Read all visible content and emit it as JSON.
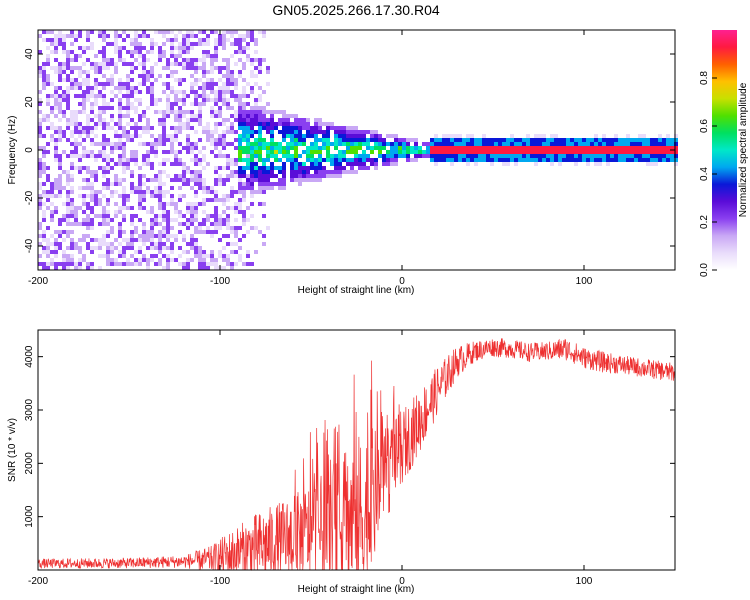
{
  "title": "GN05.2025.266.17.30.R04",
  "chart_data": [
    {
      "type": "heatmap",
      "xlabel": "Height of straight line (km)",
      "ylabel": "Frequency (Hz)",
      "xlim": [
        -200,
        150
      ],
      "ylim": [
        -50,
        50
      ],
      "x_ticks": [
        -200,
        -100,
        0,
        100
      ],
      "y_ticks": [
        -40,
        -20,
        0,
        20,
        40
      ],
      "colorbar": {
        "label": "Normalized spectral amplitude",
        "range": [
          0,
          1
        ],
        "ticks": [
          0.0,
          0.2,
          0.4,
          0.6,
          0.8
        ],
        "tick_labels": [
          "0.0",
          "0.2",
          "0.4",
          "0.6",
          "0.8"
        ],
        "gradient": [
          "#ffffff",
          "#e9dcfb",
          "#c9a8f5",
          "#8a3ff0",
          "#5a0cd8",
          "#0a18d8",
          "#00a8f0",
          "#00e8c8",
          "#00e060",
          "#50e000",
          "#c8e000",
          "#ffc000",
          "#ff6000",
          "#ff1a40",
          "#ff2090"
        ]
      },
      "description_of_structure": {
        "noise_region_km": [
          -200,
          -70
        ],
        "noise_amplitude": 0.2,
        "converging_region_km": [
          -90,
          15
        ],
        "carrier_line_start_km": 15,
        "carrier_frequency_hz": 0,
        "carrier_amplitude": 0.95
      }
    },
    {
      "type": "line",
      "xlabel": "Height of straight line (km)",
      "ylabel": "SNR (10 * v/v)",
      "xlim": [
        -200,
        150
      ],
      "ylim": [
        0,
        4500
      ],
      "x_ticks": [
        -200,
        -100,
        0,
        100
      ],
      "y_ticks": [
        1000,
        2000,
        3000,
        4000
      ],
      "color": "#ee3030",
      "series": [
        {
          "name": "SNR",
          "envelope": {
            "x": [
              -200,
              -150,
              -120,
              -105,
              -95,
              -80,
              -60,
              -40,
              -30,
              -20,
              -10,
              0,
              10,
              20,
              30,
              40,
              50,
              60,
              70,
              80,
              90,
              100,
              110,
              120,
              130,
              150
            ],
            "mean": [
              120,
              130,
              160,
              200,
              280,
              420,
              600,
              800,
              900,
              1000,
              1700,
              2300,
              2800,
              3400,
              3900,
              4100,
              4180,
              4150,
              4080,
              4100,
              4150,
              3980,
              3900,
              3850,
              3800,
              3700
            ],
            "spread": [
              90,
              100,
              120,
              250,
              450,
              650,
              800,
              1100,
              1400,
              1700,
              900,
              700,
              600,
              450,
              300,
              200,
              180,
              180,
              180,
              180,
              220,
              200,
              200,
              180,
              180,
              180
            ]
          }
        }
      ]
    }
  ]
}
